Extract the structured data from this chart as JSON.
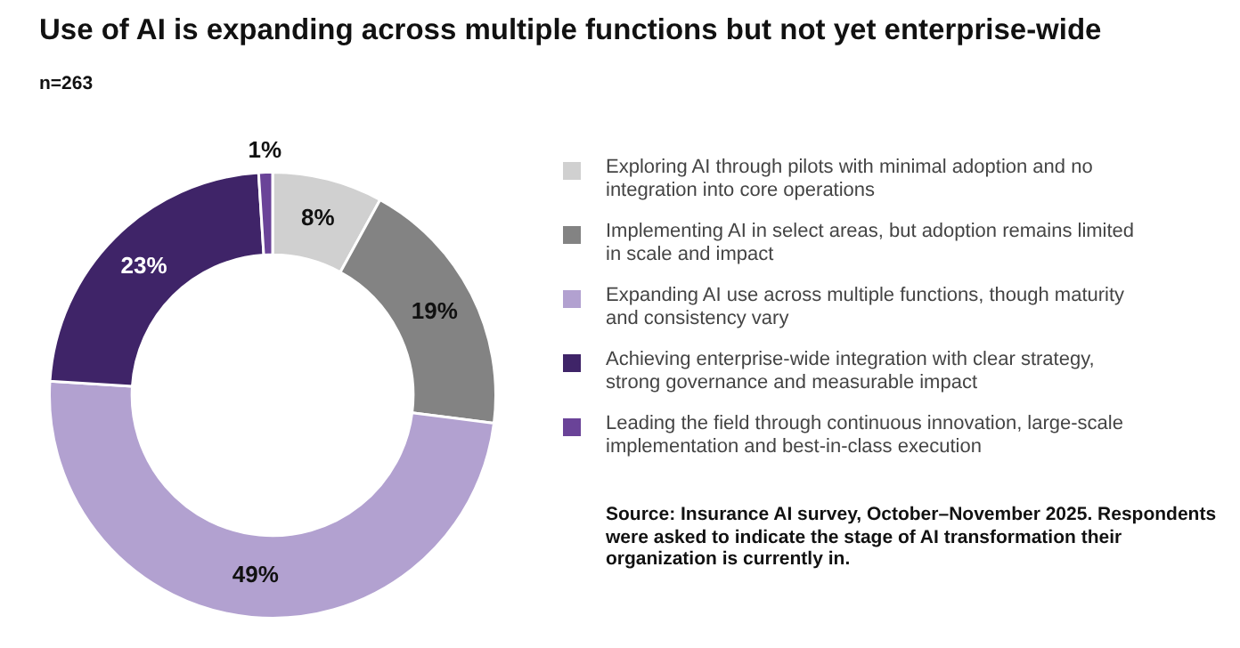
{
  "chart_data": {
    "type": "donut",
    "title": "Use of AI is expanding across multiple functions but not yet enterprise-wide",
    "subtitle": "n=263",
    "categories": [
      "Exploring AI through pilots with minimal adoption and no integration into core operations",
      "Implementing AI in select areas, but adoption remains limited in scale and impact",
      "Expanding AI use across multiple functions, though maturity and consistency vary",
      "Achieving enterprise-wide integration with clear strategy, strong governance and measurable impact",
      "Leading the field through continuous innovation, large-scale implementation and best-in-class execution"
    ],
    "values": [
      8,
      19,
      49,
      23,
      1
    ],
    "value_labels": [
      "8%",
      "19%",
      "49%",
      "23%",
      "1%"
    ],
    "colors": [
      "#d0d0d0",
      "#838383",
      "#b2a1d0",
      "#3f2468",
      "#6a4398"
    ],
    "legend": "right",
    "annotations": [
      "Source: Insurance AI survey, October–November 2025. Respondents were asked to indicate the stage of AI transformation their organization is currently in."
    ]
  }
}
